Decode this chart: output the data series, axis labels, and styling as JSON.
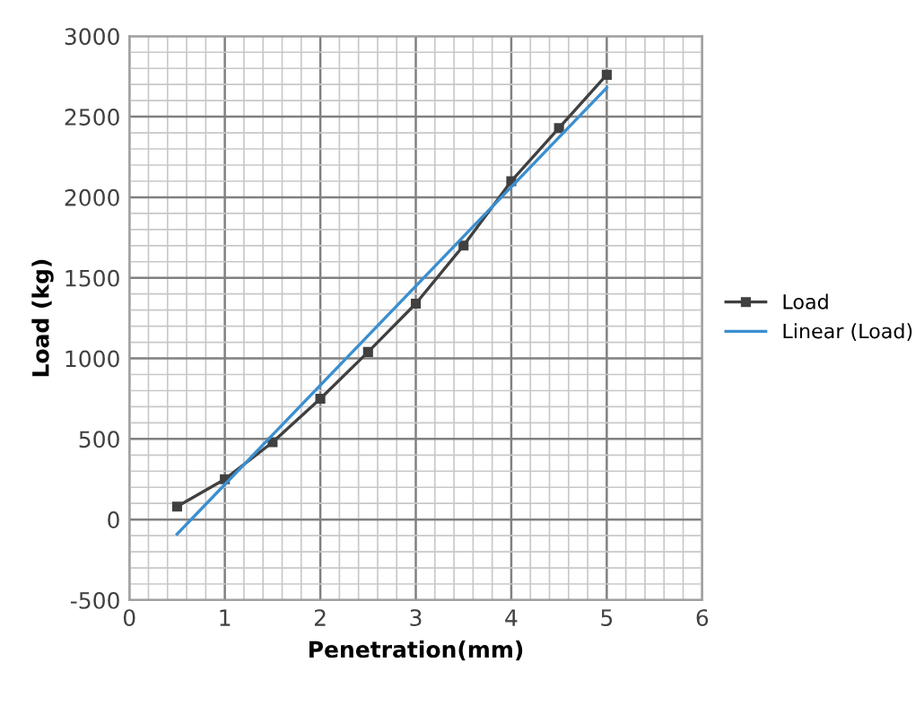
{
  "chart_data": {
    "type": "line",
    "xlabel": "Penetration(mm)",
    "ylabel": "Load (kg)",
    "xlim": [
      0,
      6
    ],
    "xticks": [
      0,
      1,
      2,
      3,
      4,
      5,
      6
    ],
    "ylim": [
      -500,
      3000
    ],
    "yticks": [
      -500,
      0,
      500,
      1000,
      1500,
      2000,
      2500,
      3000
    ],
    "grid": true,
    "legend": "right",
    "line_style": "solid",
    "series": [
      {
        "name": "Load",
        "color": "#404040",
        "marker": "square",
        "x": [
          0.5,
          1,
          1.5,
          2,
          2.5,
          3,
          3.5,
          4,
          4.5,
          5
        ],
        "values": [
          80,
          250,
          480,
          750,
          1040,
          1340,
          1700,
          2100,
          2430,
          2760
        ]
      },
      {
        "name": "Linear (Load)",
        "color": "#3a8fd0",
        "marker": "none",
        "x": [
          0.5,
          5
        ],
        "values": [
          -90,
          2680
        ]
      }
    ]
  }
}
